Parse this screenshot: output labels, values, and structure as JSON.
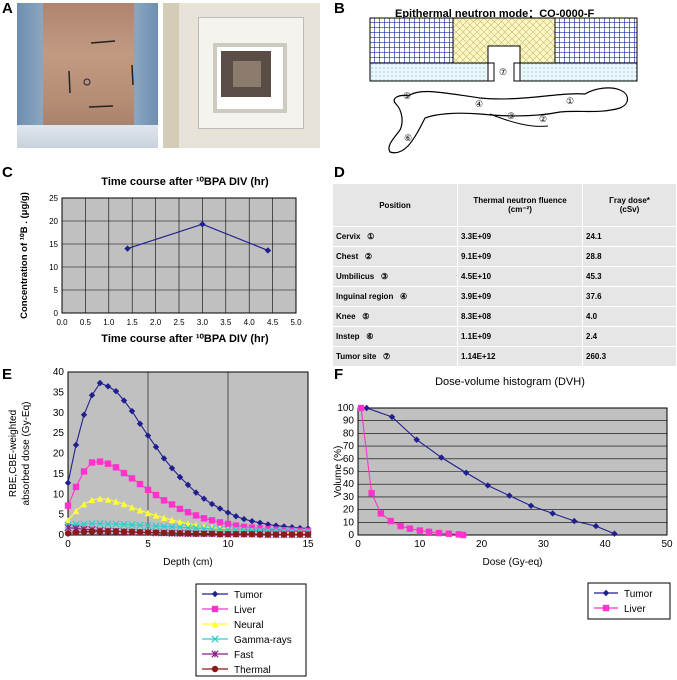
{
  "panel_labels": {
    "A": "A",
    "B": "B",
    "C": "C",
    "D": "D",
    "E": "E",
    "F": "F"
  },
  "panelB": {
    "title": "Epithermal neutron mode：CO-0000-F",
    "markers": [
      "①",
      "②",
      "③",
      "④",
      "⑤",
      "⑥",
      "⑦"
    ]
  },
  "panelD": {
    "headers": {
      "position": "Position",
      "fluence": "Thermal neutron fluence",
      "fluence_unit": "(cm⁻²)",
      "gamma": "Γray dose*",
      "gamma_unit": "(cSv)"
    },
    "rows": [
      {
        "position": "Cervix",
        "marker": "①",
        "fluence": "3.3E+09",
        "gamma": "24.1"
      },
      {
        "position": "Chest",
        "marker": "②",
        "fluence": "9.1E+09",
        "gamma": "28.8"
      },
      {
        "position": "Umbilicus",
        "marker": "③",
        "fluence": "4.5E+10",
        "gamma": "45.3"
      },
      {
        "position": "Inguinal region",
        "marker": "④",
        "fluence": "3.9E+09",
        "gamma": "37.6"
      },
      {
        "position": "Knee",
        "marker": "⑤",
        "fluence": "8.3E+08",
        "gamma": "4.0"
      },
      {
        "position": "Instep",
        "marker": "⑥",
        "fluence": "1.1E+09",
        "gamma": "2.4"
      },
      {
        "position": "Tumor site",
        "marker": "⑦",
        "fluence": "1.14E+12",
        "gamma": "260.3"
      }
    ]
  },
  "colors": {
    "tumor": "#1f1f8f",
    "liver": "#ff33cc",
    "neural": "#ffff33",
    "gamma": "#33cccc",
    "fast": "#8b1a8b",
    "thermal": "#8b1a1a",
    "plotbg": "#c0c0c0"
  },
  "chart_data": [
    {
      "id": "C",
      "type": "line",
      "title": "Time course after ¹⁰BPA DIV (hr)",
      "xlabel": "Time course after ¹⁰BPA DIV (hr)",
      "ylabel": "Concentration of ¹⁰B . (μg/g)",
      "xlim": [
        0,
        5.0
      ],
      "ylim": [
        0,
        25
      ],
      "xticks": [
        "0.0",
        "0.5",
        "1.0",
        "1.5",
        "2.0",
        "2.5",
        "3.0",
        "3.5",
        "4.0",
        "4.5",
        "5.0"
      ],
      "yticks": [
        "0",
        "5",
        "10",
        "15",
        "20",
        "25"
      ],
      "series": [
        {
          "name": "10B",
          "x": [
            1.4,
            3.0,
            4.4
          ],
          "y": [
            14.0,
            19.3,
            13.6
          ]
        }
      ]
    },
    {
      "id": "E",
      "type": "line",
      "title": "",
      "xlabel": "Depth (cm)",
      "ylabel": "RBE,CBE-weighted absorbed dose (Gy-Eq)",
      "xlim": [
        0,
        15
      ],
      "ylim": [
        0,
        40
      ],
      "xticks": [
        "0",
        "5",
        "10",
        "15"
      ],
      "yticks": [
        "0",
        "5",
        "10",
        "15",
        "20",
        "25",
        "30",
        "35",
        "40"
      ],
      "x": [
        0,
        0.5,
        1,
        1.5,
        2,
        2.5,
        3,
        3.5,
        4,
        4.5,
        5,
        5.5,
        6,
        6.5,
        7,
        7.5,
        8,
        8.5,
        9,
        9.5,
        10,
        10.5,
        11,
        11.5,
        12,
        12.5,
        13,
        13.5,
        14,
        14.5,
        15
      ],
      "series": [
        {
          "name": "Tumor",
          "values": [
            12.8,
            22.1,
            29.5,
            34.3,
            37.3,
            36.5,
            35.3,
            33.0,
            30.4,
            27.3,
            24.4,
            21.6,
            18.8,
            16.4,
            14.2,
            12.3,
            10.4,
            8.9,
            7.6,
            6.5,
            5.5,
            4.6,
            3.9,
            3.4,
            3.0,
            2.6,
            2.3,
            2.1,
            1.9,
            1.7,
            1.6
          ]
        },
        {
          "name": "Liver",
          "values": [
            7.2,
            11.8,
            15.6,
            17.8,
            18.0,
            17.5,
            16.6,
            15.2,
            13.9,
            12.5,
            11.1,
            9.8,
            8.5,
            7.5,
            6.4,
            5.6,
            4.8,
            4.1,
            3.6,
            3.1,
            2.7,
            2.3,
            2.0,
            1.8,
            1.6,
            1.4,
            1.3,
            1.2,
            1.1,
            1.0,
            1.0
          ]
        },
        {
          "name": "Neural",
          "values": [
            3.6,
            5.9,
            7.6,
            8.6,
            8.9,
            8.7,
            8.2,
            7.6,
            6.8,
            6.1,
            5.4,
            4.8,
            4.2,
            3.7,
            3.2,
            2.8,
            2.4,
            2.1,
            1.8,
            1.6,
            1.4,
            1.2,
            1.1,
            1.0,
            0.9,
            0.8,
            0.8,
            0.7,
            0.7,
            0.6,
            0.6
          ]
        },
        {
          "name": "Gamma-rays",
          "values": [
            2.4,
            2.6,
            2.7,
            2.8,
            2.8,
            2.7,
            2.7,
            2.6,
            2.5,
            2.4,
            2.3,
            2.2,
            2.1,
            2.0,
            1.9,
            1.8,
            1.7,
            1.6,
            1.5,
            1.4,
            1.3,
            1.3,
            1.2,
            1.1,
            1.1,
            1.0,
            1.0,
            0.9,
            0.9,
            0.8,
            0.8
          ]
        },
        {
          "name": "Fast",
          "values": [
            1.8,
            1.6,
            1.4,
            1.3,
            1.1,
            1.0,
            0.9,
            0.8,
            0.7,
            0.6,
            0.6,
            0.5,
            0.5,
            0.4,
            0.4,
            0.3,
            0.3,
            0.3,
            0.3,
            0.2,
            0.2,
            0.2,
            0.2,
            0.2,
            0.2,
            0.1,
            0.1,
            0.1,
            0.1,
            0.1,
            0.1
          ]
        },
        {
          "name": "Thermal",
          "values": [
            0.4,
            0.6,
            0.8,
            0.9,
            0.9,
            0.9,
            0.9,
            0.8,
            0.8,
            0.7,
            0.6,
            0.6,
            0.5,
            0.5,
            0.4,
            0.4,
            0.3,
            0.3,
            0.3,
            0.2,
            0.2,
            0.2,
            0.2,
            0.2,
            0.1,
            0.1,
            0.1,
            0.1,
            0.1,
            0.1,
            0.1
          ]
        }
      ],
      "legend_position": "below"
    },
    {
      "id": "F",
      "type": "line",
      "title": "Dose-volume histogram (DVH)",
      "xlabel": "Dose (Gy-eq)",
      "ylabel": "Volume (%)",
      "xlim": [
        0,
        50
      ],
      "ylim": [
        0,
        100
      ],
      "xticks": [
        "0",
        "10",
        "20",
        "30",
        "40",
        "50"
      ],
      "yticks": [
        "0",
        "10",
        "20",
        "30",
        "40",
        "50",
        "60",
        "70",
        "80",
        "90",
        "100"
      ],
      "series": [
        {
          "name": "Tumor",
          "x": [
            1.4,
            5.5,
            9.5,
            13.5,
            17.5,
            21.0,
            24.5,
            28.0,
            31.5,
            35.0,
            38.5,
            41.5
          ],
          "y": [
            100,
            93,
            75,
            61,
            49,
            39,
            31,
            23,
            17,
            11,
            7,
            1
          ]
        },
        {
          "name": "Liver",
          "x": [
            0.5,
            2.2,
            3.7,
            5.3,
            6.9,
            8.4,
            10.0,
            11.5,
            13.1,
            14.7,
            16.3,
            17.0
          ],
          "y": [
            100,
            33,
            17,
            11,
            7,
            5,
            3.5,
            2.5,
            1.5,
            1,
            0.5,
            0
          ]
        }
      ],
      "legend_position": "bottom-right"
    }
  ]
}
